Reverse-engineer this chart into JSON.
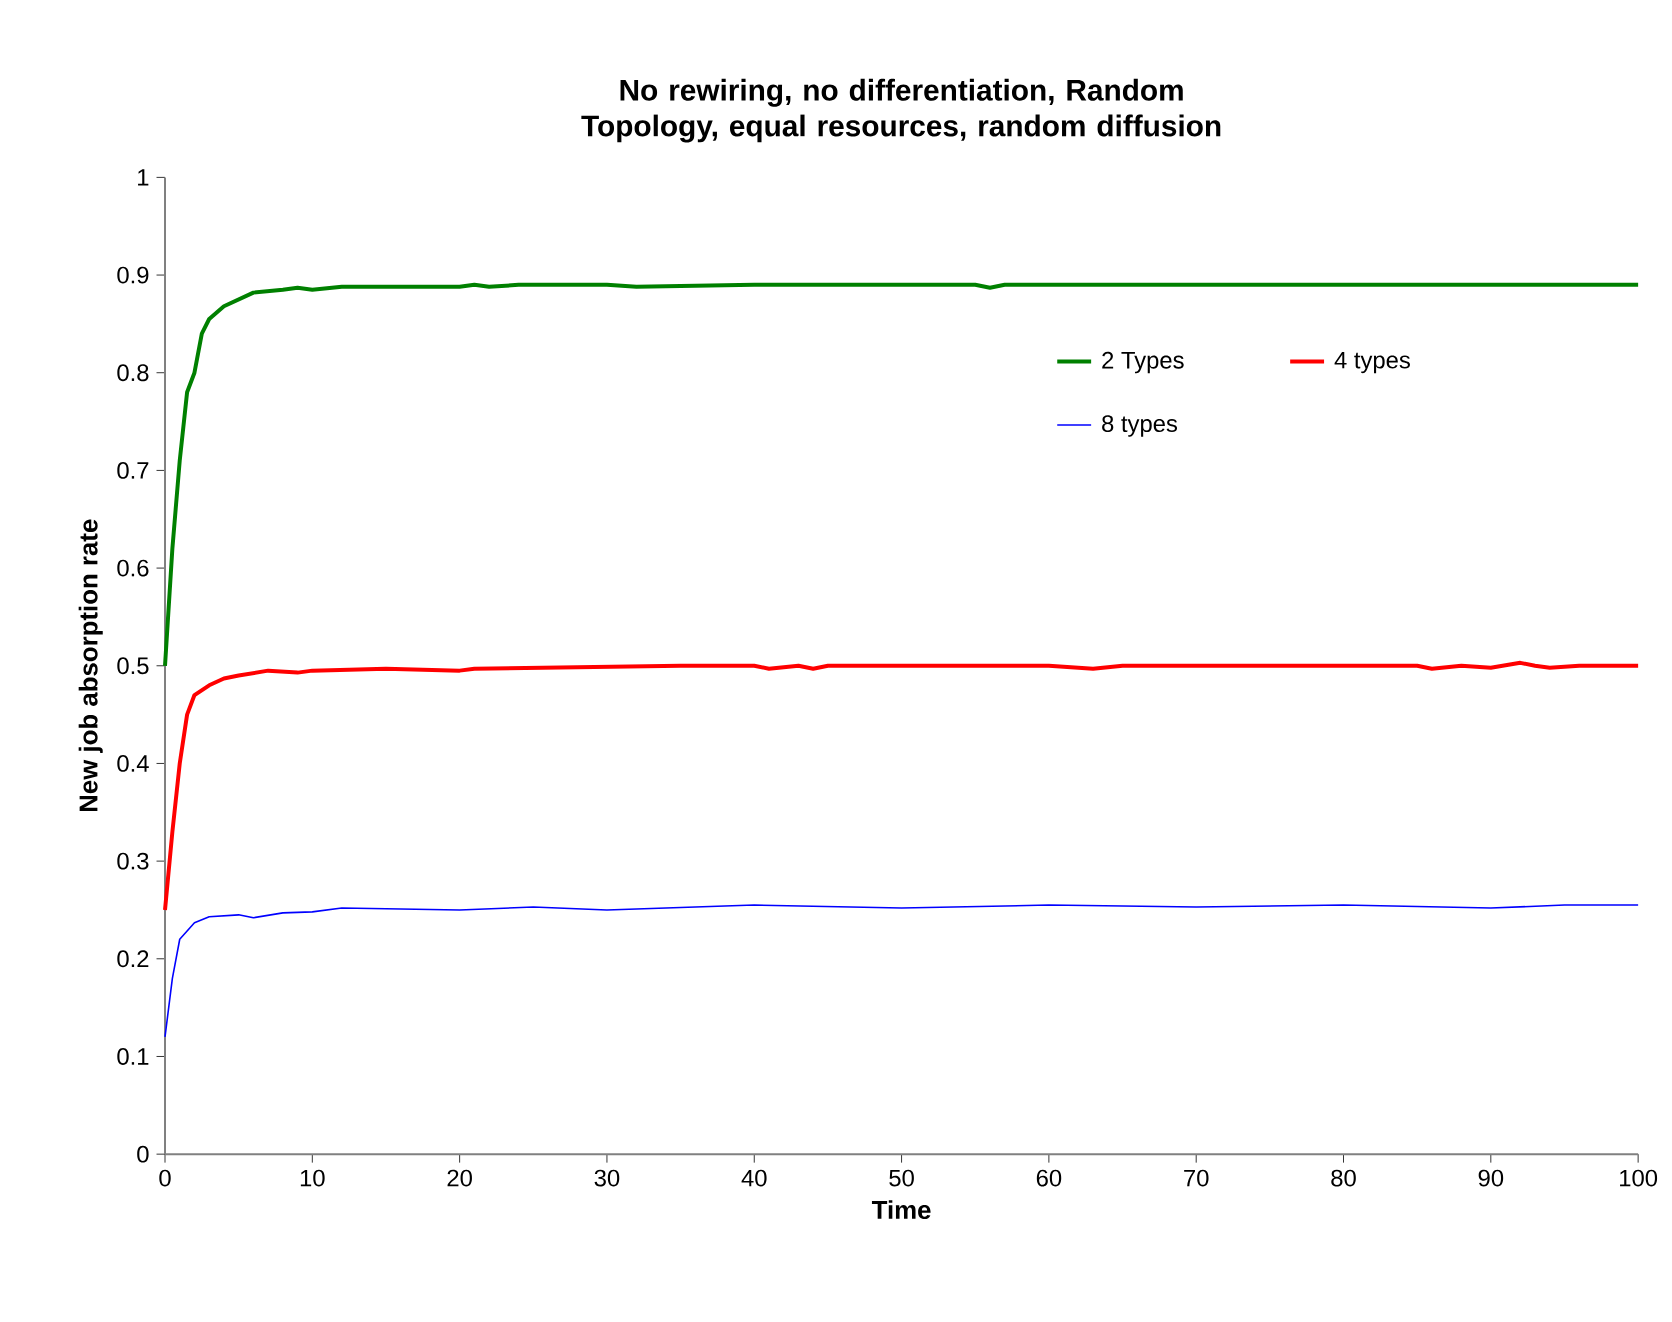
{
  "chart_data": {
    "type": "line",
    "title": "No rewiring, no differentiation, Random Topology, equal resources, random diffusion",
    "xlabel": "Time",
    "ylabel": "New job absorption rate",
    "xlim": [
      0,
      100
    ],
    "ylim": [
      0,
      1
    ],
    "xticks": [
      0,
      10,
      20,
      30,
      40,
      50,
      60,
      70,
      80,
      90,
      100
    ],
    "yticks": [
      0,
      0.1,
      0.2,
      0.3,
      0.4,
      0.5,
      0.6,
      0.7,
      0.8,
      0.9,
      1
    ],
    "grid": false,
    "legend": "top right",
    "marker": "none",
    "line_style": "solid",
    "series": [
      {
        "name": "2 Types",
        "color": "#008000",
        "x": [
          0,
          0.5,
          1,
          1.5,
          2,
          2.5,
          3,
          4,
          5,
          6,
          8,
          9,
          10,
          12,
          20,
          21,
          22,
          24,
          30,
          32,
          40,
          55,
          56,
          57,
          100
        ],
        "values": [
          0.5,
          0.62,
          0.71,
          0.78,
          0.8,
          0.84,
          0.855,
          0.868,
          0.875,
          0.882,
          0.885,
          0.887,
          0.885,
          0.888,
          0.888,
          0.89,
          0.888,
          0.89,
          0.89,
          0.888,
          0.89,
          0.89,
          0.887,
          0.89,
          0.89
        ]
      },
      {
        "name": "4 types",
        "color": "#ff0000",
        "x": [
          0,
          0.5,
          1,
          1.5,
          2,
          3,
          4,
          5,
          7,
          9,
          10,
          15,
          20,
          21,
          35,
          40,
          41,
          43,
          44,
          45,
          60,
          63,
          65,
          85,
          86,
          88,
          90,
          92,
          93,
          94,
          96,
          100
        ],
        "values": [
          0.25,
          0.33,
          0.4,
          0.45,
          0.47,
          0.48,
          0.487,
          0.49,
          0.495,
          0.493,
          0.495,
          0.497,
          0.495,
          0.497,
          0.5,
          0.5,
          0.497,
          0.5,
          0.497,
          0.5,
          0.5,
          0.497,
          0.5,
          0.5,
          0.497,
          0.5,
          0.498,
          0.503,
          0.5,
          0.498,
          0.5,
          0.5
        ]
      },
      {
        "name": "8 types",
        "color": "#0000ff",
        "x": [
          0,
          0.5,
          1,
          2,
          3,
          5,
          6,
          8,
          10,
          12,
          20,
          25,
          30,
          40,
          50,
          60,
          70,
          80,
          90,
          95,
          100
        ],
        "values": [
          0.12,
          0.18,
          0.22,
          0.237,
          0.243,
          0.245,
          0.242,
          0.247,
          0.248,
          0.252,
          0.25,
          0.253,
          0.25,
          0.255,
          0.252,
          0.255,
          0.253,
          0.255,
          0.252,
          0.255,
          0.255
        ]
      }
    ]
  }
}
